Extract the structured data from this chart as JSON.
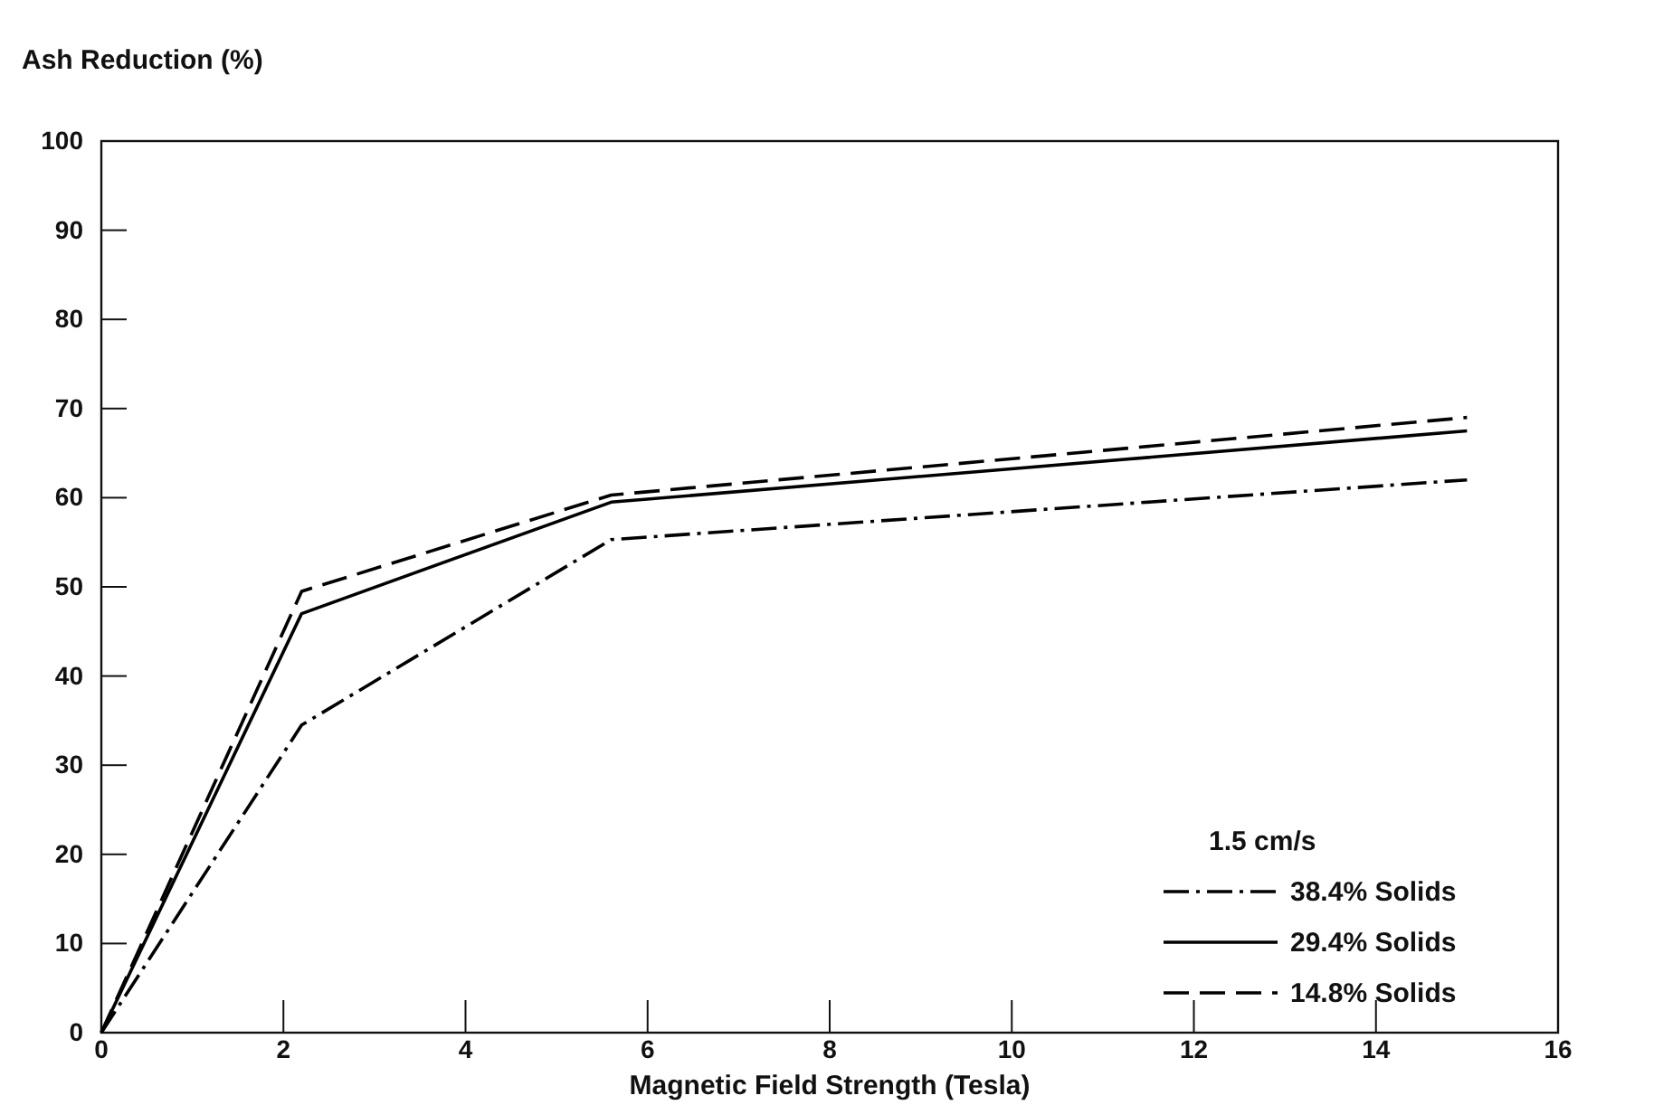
{
  "chart_data": {
    "type": "line",
    "ylabel": "Ash Reduction (%)",
    "xlabel": "Magnetic Field Strength (Tesla)",
    "legend_title": "1.5 cm/s",
    "legend": "bottom right",
    "grid": false,
    "marker": "none",
    "xlim": [
      0,
      16
    ],
    "xticks": [
      0,
      2,
      4,
      6,
      8,
      10,
      12,
      14,
      16
    ],
    "ylim": [
      0,
      100
    ],
    "yticks": [
      0,
      10,
      20,
      30,
      40,
      50,
      60,
      70,
      80,
      90,
      100
    ],
    "series": [
      {
        "name": "38.4% Solids",
        "color": "#000000",
        "line_style": "dashdot",
        "x": [
          0,
          2.2,
          5.6,
          15
        ],
        "values": [
          0,
          34.5,
          55.3,
          62
        ]
      },
      {
        "name": "29.4% Solids",
        "color": "#000000",
        "line_style": "solid",
        "x": [
          0,
          2.2,
          5.6,
          15
        ],
        "values": [
          0,
          47,
          59.5,
          67.5
        ]
      },
      {
        "name": "14.8% Solids",
        "color": "#000000",
        "line_style": "dashed",
        "x": [
          0,
          2.2,
          5.6,
          15
        ],
        "values": [
          0,
          49.5,
          60.3,
          69
        ]
      }
    ]
  }
}
